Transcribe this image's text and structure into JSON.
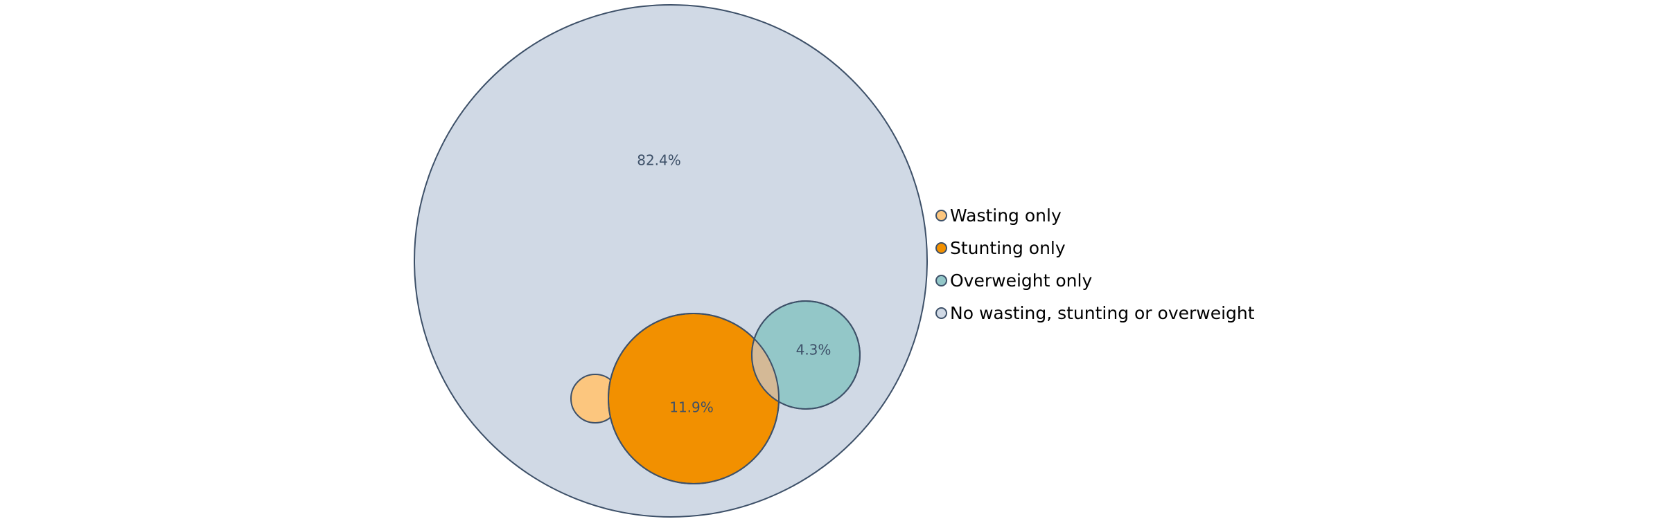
{
  "chart_data": {
    "type": "bubble-venn",
    "title": "",
    "outline_color": "#3d5068",
    "series": [
      {
        "name": "No wasting, stunting or overweight",
        "value": 82.4,
        "value_label": "82.4%",
        "color": "#d0d9e5"
      },
      {
        "name": "Wasting only",
        "value": null,
        "value_label": "",
        "color": "#fcc67e"
      },
      {
        "name": "Stunting only",
        "value": 11.9,
        "value_label": "11.9%",
        "color": "#f29000"
      },
      {
        "name": "Overweight only",
        "value": 4.3,
        "value_label": "4.3%",
        "color": "#93c7c8"
      }
    ],
    "overlaps": [
      {
        "sets": [
          "Stunting only",
          "Overweight only"
        ],
        "color": "#d4b996"
      }
    ],
    "legend": {
      "position": "right",
      "items": [
        "Wasting only",
        "Stunting only",
        "Overweight only",
        "No wasting, stunting or overweight"
      ]
    }
  }
}
